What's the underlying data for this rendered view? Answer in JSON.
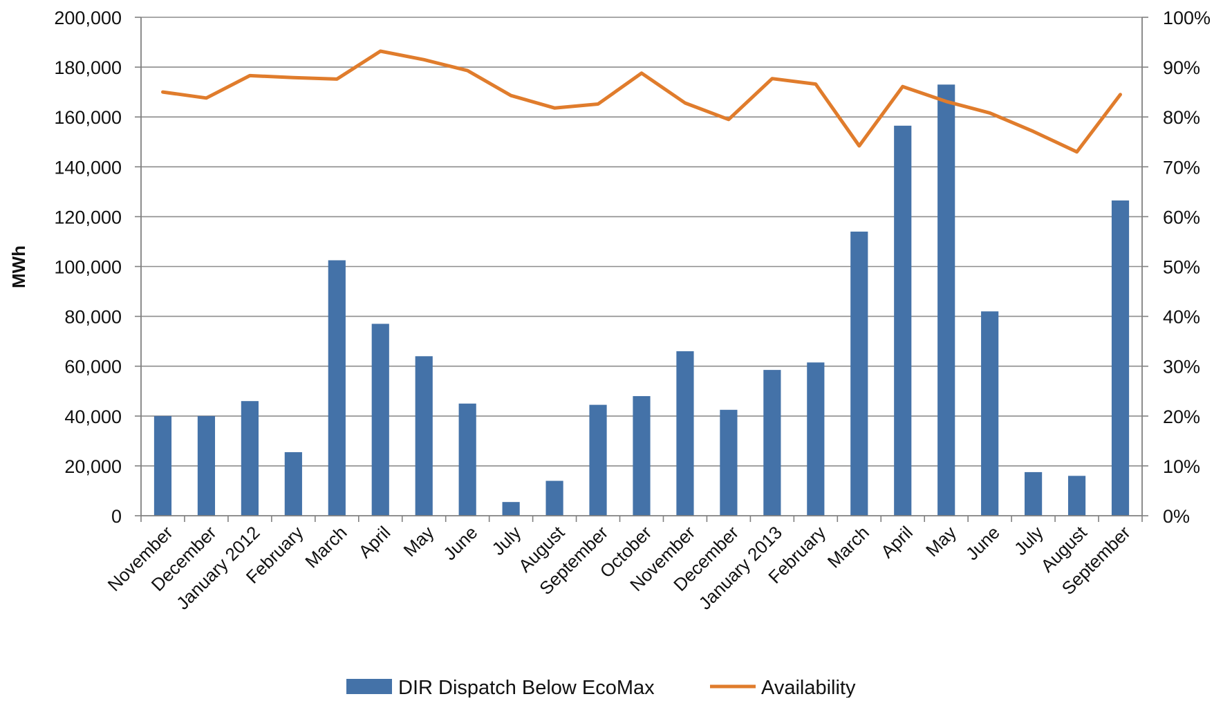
{
  "chart_data": {
    "type": "bar",
    "categories": [
      "November",
      "December",
      "January 2012",
      "February",
      "March",
      "April",
      "May",
      "June",
      "July",
      "August",
      "September",
      "October",
      "November",
      "December",
      "January 2013",
      "February",
      "March",
      "April",
      "May",
      "June",
      "July",
      "August",
      "September"
    ],
    "series": [
      {
        "name": "DIR Dispatch Below EcoMax",
        "type": "bar",
        "axis": "left",
        "color": "#4472a8",
        "values": [
          40000,
          40000,
          46000,
          25500,
          102500,
          77000,
          64000,
          45000,
          5500,
          14000,
          44500,
          48000,
          66000,
          42500,
          58500,
          61500,
          114000,
          156500,
          173000,
          82000,
          17500,
          16000,
          126500
        ]
      },
      {
        "name": "Availability",
        "type": "line",
        "axis": "right",
        "color": "#e07c2c",
        "values": [
          85.0,
          83.8,
          88.3,
          87.9,
          87.6,
          93.2,
          91.5,
          89.3,
          84.3,
          81.8,
          82.6,
          88.8,
          82.8,
          79.5,
          87.7,
          86.6,
          74.2,
          86.1,
          83.1,
          80.8,
          77.1,
          73.0,
          84.5
        ]
      }
    ],
    "y_left": {
      "label": "MWh",
      "lim": [
        0,
        200000
      ],
      "ticks": [
        "0",
        "20,000",
        "40,000",
        "60,000",
        "80,000",
        "100,000",
        "120,000",
        "140,000",
        "160,000",
        "180,000",
        "200,000"
      ]
    },
    "y_right": {
      "lim": [
        0,
        100
      ],
      "ticks": [
        "0%",
        "10%",
        "20%",
        "30%",
        "40%",
        "50%",
        "60%",
        "70%",
        "80%",
        "90%",
        "100%"
      ]
    },
    "grid": true,
    "legend_position": "bottom"
  }
}
